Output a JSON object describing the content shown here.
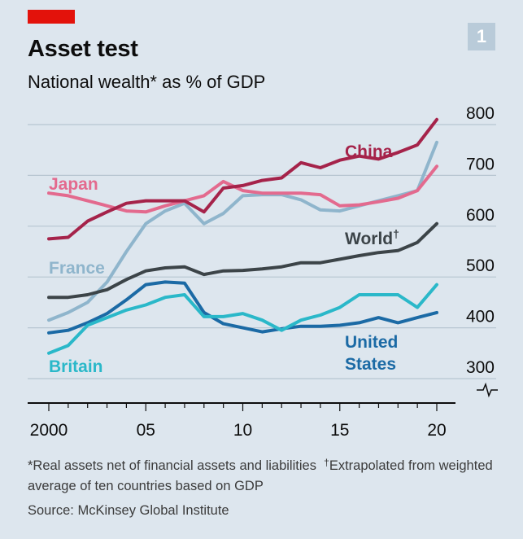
{
  "header": {
    "title": "Asset test",
    "subtitle": "National wealth* as % of GDP",
    "chart_number": "1"
  },
  "footnote": {
    "star_text": "*Real assets net of financial assets and liabilities",
    "dagger_mark": "†",
    "dagger_text": "Extrapolated from weighted average of ten countries based on GDP",
    "source": "Source: McKinsey Global Institute"
  },
  "colors": {
    "brand_red": "#e3120b",
    "background": "#dde6ee"
  },
  "chart_data": {
    "type": "line",
    "ylim": [
      300,
      800
    ],
    "xlim": [
      2000,
      2020
    ],
    "y_ticks": [
      300,
      400,
      500,
      600,
      700,
      800
    ],
    "y_tick_labels": [
      "300",
      "400",
      "500",
      "600",
      "700",
      "800"
    ],
    "x_ticks": [
      2000,
      2005,
      2010,
      2015,
      2020
    ],
    "x_tick_labels": [
      "2000",
      "05",
      "10",
      "15",
      "20"
    ],
    "axis_break_below": 300,
    "grid": true,
    "series": [
      {
        "name": "China",
        "color": "#a5234a",
        "label_lines": [
          "China"
        ],
        "x": [
          2000,
          2001,
          2002,
          2003,
          2004,
          2005,
          2006,
          2007,
          2008,
          2009,
          2010,
          2011,
          2012,
          2013,
          2014,
          2015,
          2016,
          2017,
          2018,
          2019,
          2020
        ],
        "y": [
          575,
          578,
          610,
          628,
          645,
          650,
          650,
          650,
          628,
          675,
          680,
          690,
          695,
          725,
          715,
          730,
          738,
          732,
          745,
          760,
          810
        ]
      },
      {
        "name": "Japan",
        "color": "#e36a8e",
        "label_lines": [
          "Japan"
        ],
        "x": [
          2000,
          2001,
          2002,
          2003,
          2004,
          2005,
          2006,
          2007,
          2008,
          2009,
          2010,
          2011,
          2012,
          2013,
          2014,
          2015,
          2016,
          2017,
          2018,
          2019,
          2020
        ],
        "y": [
          665,
          660,
          650,
          640,
          630,
          628,
          640,
          650,
          660,
          688,
          670,
          665,
          665,
          665,
          662,
          640,
          642,
          648,
          655,
          670,
          718
        ]
      },
      {
        "name": "France",
        "color": "#8fb5cc",
        "label_lines": [
          "France"
        ],
        "x": [
          2000,
          2001,
          2002,
          2003,
          2004,
          2005,
          2006,
          2007,
          2008,
          2009,
          2010,
          2011,
          2012,
          2013,
          2014,
          2015,
          2016,
          2017,
          2018,
          2019,
          2020
        ],
        "y": [
          415,
          430,
          450,
          490,
          550,
          605,
          630,
          645,
          605,
          625,
          660,
          662,
          662,
          652,
          632,
          630,
          640,
          650,
          660,
          670,
          765
        ]
      },
      {
        "name": "World",
        "color": "#3c4448",
        "label_lines": [
          "World"
        ],
        "label_suffix": "†",
        "x": [
          2000,
          2001,
          2002,
          2003,
          2004,
          2005,
          2006,
          2007,
          2008,
          2009,
          2010,
          2011,
          2012,
          2013,
          2014,
          2015,
          2016,
          2017,
          2018,
          2019,
          2020
        ],
        "y": [
          460,
          460,
          465,
          475,
          495,
          512,
          518,
          520,
          505,
          512,
          513,
          516,
          520,
          528,
          528,
          535,
          542,
          548,
          552,
          568,
          605
        ]
      },
      {
        "name": "Britain",
        "color": "#2ab8c9",
        "label_lines": [
          "Britain"
        ],
        "x": [
          2000,
          2001,
          2002,
          2003,
          2004,
          2005,
          2006,
          2007,
          2008,
          2009,
          2010,
          2011,
          2012,
          2013,
          2014,
          2015,
          2016,
          2017,
          2018,
          2019,
          2020
        ],
        "y": [
          350,
          365,
          405,
          420,
          435,
          445,
          460,
          465,
          422,
          422,
          428,
          415,
          395,
          415,
          425,
          440,
          465,
          465,
          465,
          440,
          485
        ]
      },
      {
        "name": "United States",
        "color": "#1b6aa5",
        "label_lines": [
          "United",
          "States"
        ],
        "x": [
          2000,
          2001,
          2002,
          2003,
          2004,
          2005,
          2006,
          2007,
          2008,
          2009,
          2010,
          2011,
          2012,
          2013,
          2014,
          2015,
          2016,
          2017,
          2018,
          2019,
          2020
        ],
        "y": [
          390,
          395,
          410,
          428,
          455,
          485,
          490,
          488,
          430,
          408,
          400,
          392,
          398,
          403,
          403,
          405,
          410,
          420,
          410,
          420,
          430
        ]
      }
    ]
  }
}
